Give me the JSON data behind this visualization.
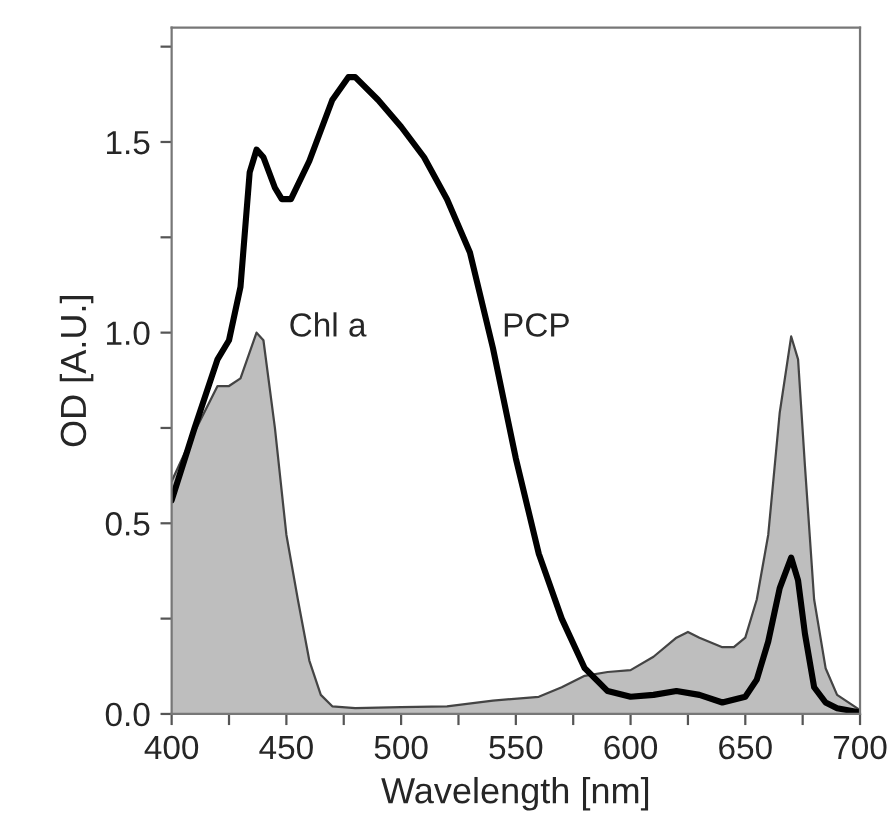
{
  "chart_data": {
    "type": "line",
    "xlabel": "Wavelength [nm]",
    "ylabel": "OD [A.U.]",
    "xlim": [
      400,
      700
    ],
    "ylim": [
      0,
      1.8
    ],
    "xticks": [
      400,
      {
        "value": 425,
        "label": null
      },
      450,
      {
        "value": 475,
        "label": null
      },
      500,
      {
        "value": 525,
        "label": null
      },
      550,
      {
        "value": 575,
        "label": null
      },
      600,
      {
        "value": 625,
        "label": null
      },
      650,
      {
        "value": 675,
        "label": null
      },
      700
    ],
    "yticks": [
      {
        "value": 0,
        "label": "0.0"
      },
      {
        "value": 0.25,
        "label": null
      },
      0.5,
      {
        "value": 0.75,
        "label": null
      },
      {
        "value": 1,
        "label": "1.0"
      },
      {
        "value": 1.25,
        "label": null
      },
      1.5,
      {
        "value": 1.75,
        "label": null
      }
    ],
    "grid": false,
    "legend": false,
    "series": [
      {
        "name": "Chl a",
        "type": "area",
        "color": "#bebebe",
        "x": [
          400,
          410,
          420,
          425,
          430,
          437,
          440,
          445,
          450,
          455,
          460,
          465,
          470,
          480,
          500,
          520,
          540,
          560,
          570,
          580,
          590,
          600,
          610,
          620,
          625,
          630,
          640,
          645,
          650,
          655,
          660,
          665,
          670,
          673,
          676,
          680,
          685,
          690,
          700
        ],
        "values": [
          0.61,
          0.74,
          0.86,
          0.86,
          0.88,
          1.0,
          0.98,
          0.75,
          0.47,
          0.3,
          0.14,
          0.05,
          0.02,
          0.015,
          0.018,
          0.02,
          0.035,
          0.045,
          0.07,
          0.1,
          0.11,
          0.115,
          0.15,
          0.2,
          0.215,
          0.2,
          0.175,
          0.175,
          0.2,
          0.3,
          0.47,
          0.79,
          0.99,
          0.93,
          0.65,
          0.3,
          0.12,
          0.05,
          0.01
        ]
      },
      {
        "name": "PCP",
        "color": "#000000",
        "x": [
          400,
          410,
          420,
          425,
          430,
          434,
          437,
          440,
          445,
          448,
          452,
          460,
          470,
          477,
          480,
          490,
          500,
          510,
          520,
          530,
          540,
          550,
          560,
          570,
          580,
          590,
          600,
          610,
          620,
          630,
          640,
          650,
          655,
          660,
          665,
          670,
          673,
          676,
          680,
          685,
          690,
          700
        ],
        "values": [
          0.56,
          0.75,
          0.93,
          0.98,
          1.12,
          1.42,
          1.48,
          1.46,
          1.38,
          1.35,
          1.35,
          1.45,
          1.61,
          1.67,
          1.67,
          1.61,
          1.54,
          1.46,
          1.35,
          1.21,
          0.96,
          0.67,
          0.42,
          0.25,
          0.12,
          0.06,
          0.045,
          0.05,
          0.06,
          0.05,
          0.03,
          0.045,
          0.09,
          0.19,
          0.33,
          0.41,
          0.35,
          0.21,
          0.07,
          0.03,
          0.015,
          0.004
        ]
      }
    ]
  }
}
